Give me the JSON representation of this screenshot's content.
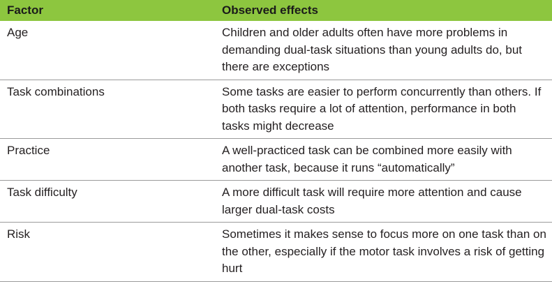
{
  "table": {
    "headers": {
      "factor": "Factor",
      "effects": "Observed effects"
    },
    "rows": [
      {
        "factor": "Age",
        "effects": "Children and older adults often have more problems in demanding dual-task situations than young adults do, but there are exceptions"
      },
      {
        "factor": "Task combinations",
        "effects": "Some tasks are easier to perform concurrently than others. If both tasks require a lot of attention, performance in both tasks might decrease"
      },
      {
        "factor": "Practice",
        "effects": "A well-practiced task can be combined more easily with another task, because it runs “automatically”"
      },
      {
        "factor": "Task difficulty",
        "effects": "A more difficult task will require more attention and cause larger dual-task costs"
      },
      {
        "factor": "Risk",
        "effects": "Sometimes it makes sense to focus more on one task than on the other, especially if the motor task involves a risk of getting hurt"
      }
    ],
    "colors": {
      "header_bg": "#8dc63f",
      "rule": "#9a9a9a",
      "text": "#231f20"
    }
  }
}
